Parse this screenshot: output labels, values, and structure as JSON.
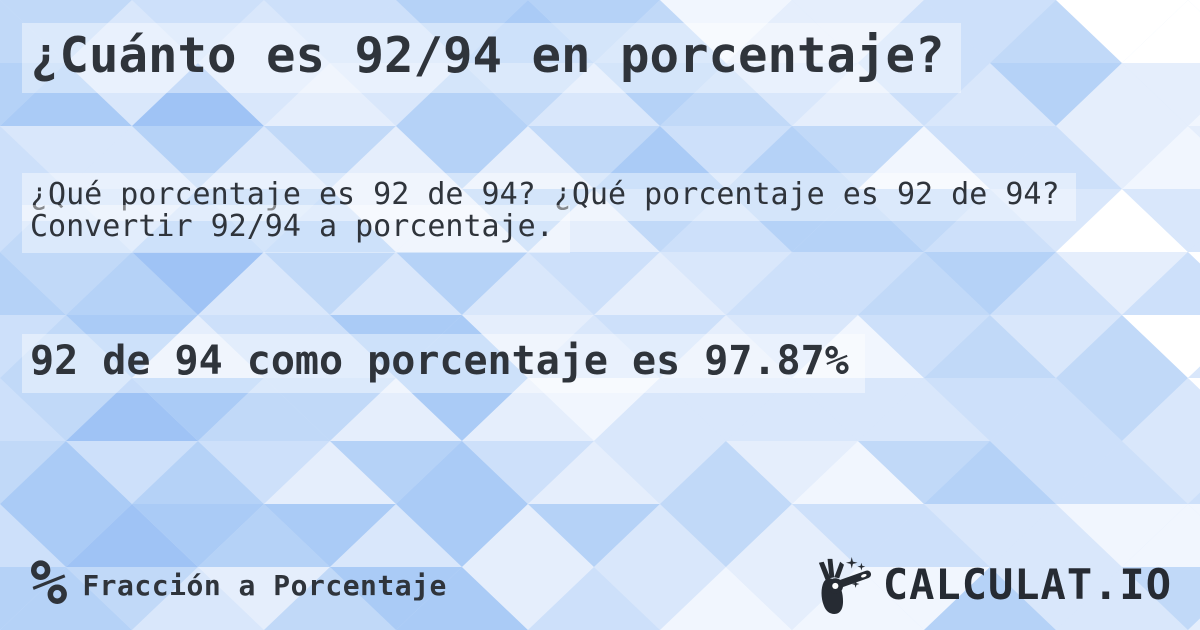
{
  "page": {
    "title": "¿Cuánto es 92/94 en porcentaje?",
    "question": "¿Qué porcentaje es 92 de 94? ¿Qué porcentaje es 92 de 94? Convertir 92/94 a porcentaje.",
    "answer": "92 de 94 como porcentaje es 97.87%"
  },
  "footer": {
    "category_icon": "percent-icon",
    "category_icon_glyph": "%",
    "category_label": "Fracción a Porcentaje",
    "brand": {
      "icon": "magic-wand-hand-icon",
      "name": "CALCULAT.IO"
    }
  },
  "colors": {
    "text": "#2f343b",
    "logo": "#262b33",
    "highlight": "rgba(255,255,255,0.42)",
    "background_base": "#d6e5fb",
    "background_palette": [
      "#9fc3f5",
      "#aacbf6",
      "#b5d2f7",
      "#c1d9f8",
      "#cde0fa",
      "#d9e7fb",
      "#e5eefc",
      "#f1f6fe",
      "#ffffff"
    ]
  }
}
